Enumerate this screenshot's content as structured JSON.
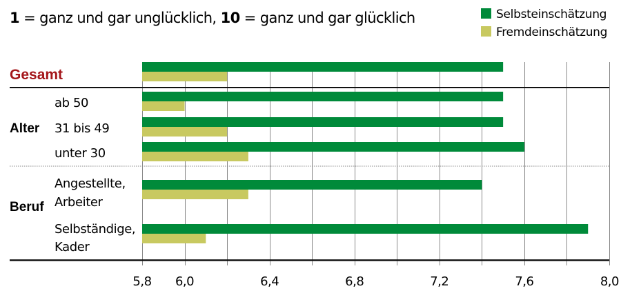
{
  "colors": {
    "self": "#008a3a",
    "other": "#c8c960",
    "gesamt": "#a4161a",
    "grid": "#888888",
    "axis": "#111111"
  },
  "chart_data": {
    "type": "bar",
    "orientation": "horizontal",
    "subtitle": {
      "part1_bold": "1",
      "part1_text": " = ganz und gar unglücklich, ",
      "part2_bold": "10",
      "part2_text": " = ganz und gar glücklich"
    },
    "legend": {
      "placement": "top-right",
      "entries": [
        "Selbsteinschätzung",
        "Fremdeinschätzung"
      ]
    },
    "xlim": [
      5.8,
      8.0
    ],
    "grid_step": 0.2,
    "ticks": [
      5.8,
      6.0,
      6.4,
      6.8,
      7.2,
      7.6,
      8.0
    ],
    "tick_labels": [
      "5,8",
      "6,0",
      "6,4",
      "6,8",
      "7,2",
      "7,6",
      "8,0"
    ],
    "groups": [
      {
        "name": "Gesamt",
        "kind": "total"
      },
      {
        "name": "Alter",
        "kind": "group"
      },
      {
        "name": "Beruf",
        "kind": "group"
      }
    ],
    "categories": [
      {
        "group": 0,
        "lines": []
      },
      {
        "group": 1,
        "lines": [
          "ab 50"
        ]
      },
      {
        "group": 1,
        "lines": [
          "31 bis 49"
        ]
      },
      {
        "group": 1,
        "lines": [
          "unter 30"
        ]
      },
      {
        "group": 2,
        "lines": [
          "Angestellte,",
          "Arbeiter"
        ]
      },
      {
        "group": 2,
        "lines": [
          "Selbständige,",
          "Kader"
        ]
      }
    ],
    "series": [
      {
        "name": "Selbsteinschätzung",
        "values": [
          7.5,
          7.5,
          7.5,
          7.6,
          7.4,
          7.9
        ]
      },
      {
        "name": "Fremdeinschätzung",
        "values": [
          6.2,
          6.0,
          6.2,
          6.3,
          6.3,
          6.1
        ]
      }
    ]
  }
}
